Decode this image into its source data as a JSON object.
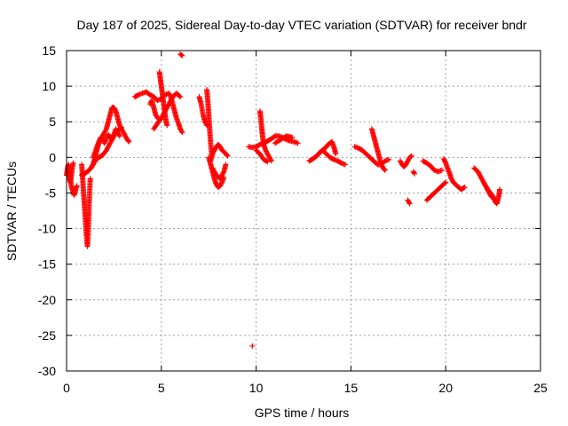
{
  "chart_data": {
    "type": "scatter",
    "title": "Day 187 of 2025, Sidereal Day-to-day VTEC variation (SDTVAR) for receiver bndr",
    "xlabel": "GPS time / hours",
    "ylabel": "SDTVAR / TECUs",
    "xlim": [
      0,
      25
    ],
    "ylim": [
      -30,
      15
    ],
    "x_ticks": [
      0,
      5,
      10,
      15,
      20,
      25
    ],
    "y_ticks": [
      -30,
      -25,
      -20,
      -15,
      -10,
      -5,
      0,
      5,
      10,
      15
    ],
    "x_tick_labels": [
      "0",
      "5",
      "10",
      "15",
      "20",
      "25"
    ],
    "y_tick_labels": [
      "-30",
      "-25",
      "-20",
      "-15",
      "-10",
      "-5",
      "0",
      "5",
      "10",
      "15"
    ],
    "grid": true,
    "marker": "+",
    "marker_color": "#ff0000",
    "series": [
      {
        "name": "SDTVAR",
        "tracks": [
          [
            [
              0.0,
              -2.5
            ],
            [
              0.05,
              -1.5
            ],
            [
              0.1,
              -1.0
            ],
            [
              0.15,
              -1.8
            ],
            [
              0.2,
              -3.0
            ],
            [
              0.25,
              -4.0
            ],
            [
              0.3,
              -4.5
            ],
            [
              0.35,
              -5.0
            ],
            [
              0.4,
              -5.3
            ],
            [
              0.45,
              -5.0
            ],
            [
              0.5,
              -4.3
            ],
            [
              0.55,
              -4.0
            ]
          ],
          [
            [
              0.1,
              -2.0
            ],
            [
              0.15,
              -3.0
            ],
            [
              0.2,
              -3.5
            ],
            [
              0.25,
              -2.5
            ],
            [
              0.3,
              -1.5
            ],
            [
              0.35,
              -0.8
            ]
          ],
          [
            [
              0.8,
              -1.0
            ],
            [
              0.85,
              -3.0
            ],
            [
              0.9,
              -5.0
            ],
            [
              0.95,
              -7.0
            ],
            [
              1.0,
              -9.0
            ],
            [
              1.05,
              -11.0
            ],
            [
              1.1,
              -12.5
            ],
            [
              1.15,
              -10.0
            ],
            [
              1.2,
              -6.0
            ],
            [
              1.25,
              -3.0
            ]
          ],
          [
            [
              0.8,
              -2.5
            ],
            [
              1.0,
              -2.2
            ],
            [
              1.2,
              -1.8
            ],
            [
              1.4,
              -1.0
            ],
            [
              1.5,
              0.0
            ],
            [
              1.6,
              1.0
            ],
            [
              1.7,
              2.0
            ],
            [
              1.8,
              2.5
            ],
            [
              1.9,
              3.0
            ],
            [
              2.0,
              3.5
            ],
            [
              2.1,
              4.0
            ],
            [
              2.2,
              5.0
            ],
            [
              2.3,
              6.0
            ],
            [
              2.4,
              7.0
            ],
            [
              2.5,
              7.0
            ],
            [
              2.6,
              6.5
            ],
            [
              2.7,
              5.5
            ],
            [
              2.8,
              4.5
            ],
            [
              2.9,
              4.0
            ],
            [
              3.0,
              3.5
            ],
            [
              3.1,
              3.0
            ],
            [
              3.2,
              2.5
            ],
            [
              3.3,
              2.2
            ]
          ],
          [
            [
              1.3,
              -1.5
            ],
            [
              1.5,
              -0.5
            ],
            [
              1.7,
              0.0
            ],
            [
              1.9,
              0.3
            ],
            [
              2.1,
              1.0
            ],
            [
              2.3,
              2.0
            ],
            [
              2.5,
              3.0
            ],
            [
              2.7,
              3.8
            ],
            [
              2.9,
              4.2
            ]
          ],
          [
            [
              1.4,
              0.0
            ],
            [
              1.6,
              1.5
            ],
            [
              1.8,
              2.8
            ],
            [
              2.0,
              2.0
            ],
            [
              2.2,
              3.2
            ],
            [
              2.4,
              2.5
            ],
            [
              2.6,
              4.0
            ],
            [
              2.8,
              3.0
            ]
          ],
          [
            [
              3.6,
              8.5
            ],
            [
              3.8,
              8.8
            ],
            [
              4.0,
              9.0
            ],
            [
              4.2,
              9.2
            ],
            [
              4.4,
              8.8
            ],
            [
              4.6,
              8.5
            ],
            [
              4.8,
              8.0
            ],
            [
              5.0,
              8.2
            ],
            [
              5.2,
              8.8
            ],
            [
              5.4,
              9.0
            ],
            [
              5.5,
              8.5
            ],
            [
              5.6,
              7.5
            ],
            [
              5.7,
              6.5
            ],
            [
              5.8,
              5.5
            ],
            [
              5.9,
              4.8
            ],
            [
              6.0,
              4.0
            ],
            [
              6.1,
              3.5
            ]
          ],
          [
            [
              4.6,
              4.0
            ],
            [
              4.8,
              4.8
            ],
            [
              5.0,
              5.5
            ],
            [
              5.2,
              6.5
            ],
            [
              5.4,
              7.5
            ],
            [
              5.6,
              8.5
            ],
            [
              5.8,
              9.0
            ],
            [
              6.0,
              8.5
            ]
          ],
          [
            [
              4.9,
              12.0
            ],
            [
              4.95,
              11.0
            ],
            [
              5.0,
              10.0
            ],
            [
              5.05,
              9.0
            ],
            [
              5.1,
              8.0
            ],
            [
              5.15,
              7.0
            ],
            [
              5.2,
              6.0
            ],
            [
              5.25,
              5.0
            ],
            [
              5.3,
              4.5
            ]
          ],
          [
            [
              4.4,
              7.5
            ],
            [
              4.5,
              8.0
            ],
            [
              4.6,
              7.0
            ],
            [
              4.7,
              6.0
            ],
            [
              4.8,
              5.5
            ]
          ],
          [
            [
              6.0,
              14.5
            ],
            [
              6.1,
              14.3
            ]
          ],
          [
            [
              7.0,
              8.5
            ],
            [
              7.1,
              7.5
            ],
            [
              7.2,
              6.0
            ],
            [
              7.3,
              5.0
            ],
            [
              7.4,
              4.5
            ]
          ],
          [
            [
              7.4,
              9.5
            ],
            [
              7.45,
              8.0
            ],
            [
              7.5,
              6.0
            ],
            [
              7.55,
              4.0
            ],
            [
              7.6,
              2.0
            ],
            [
              7.65,
              0.5
            ]
          ],
          [
            [
              7.5,
              0.0
            ],
            [
              7.6,
              -1.0
            ],
            [
              7.7,
              -2.0
            ],
            [
              7.8,
              -3.0
            ],
            [
              7.9,
              -3.8
            ],
            [
              8.0,
              -4.2
            ],
            [
              8.1,
              -4.0
            ],
            [
              8.2,
              -3.5
            ],
            [
              8.3,
              -2.8
            ]
          ],
          [
            [
              7.6,
              -0.5
            ],
            [
              7.7,
              0.5
            ],
            [
              7.8,
              1.0
            ],
            [
              7.9,
              1.5
            ],
            [
              8.0,
              1.8
            ],
            [
              8.1,
              1.5
            ],
            [
              8.2,
              1.0
            ],
            [
              8.3,
              0.8
            ],
            [
              8.4,
              0.5
            ],
            [
              8.5,
              0.2
            ]
          ],
          [
            [
              7.7,
              -1.5
            ],
            [
              7.9,
              -2.5
            ],
            [
              8.1,
              -3.0
            ],
            [
              8.3,
              -2.0
            ],
            [
              8.4,
              -1.0
            ]
          ],
          [
            [
              9.6,
              1.5
            ],
            [
              9.8,
              1.4
            ],
            [
              10.0,
              1.5
            ],
            [
              10.2,
              1.8
            ],
            [
              10.4,
              2.0
            ],
            [
              10.6,
              2.3
            ],
            [
              10.8,
              2.6
            ],
            [
              11.0,
              3.0
            ],
            [
              11.2,
              3.0
            ],
            [
              11.4,
              2.8
            ],
            [
              11.6,
              2.5
            ],
            [
              11.8,
              2.3
            ],
            [
              12.0,
              2.2
            ],
            [
              12.2,
              2.0
            ]
          ],
          [
            [
              10.2,
              6.5
            ],
            [
              10.25,
              5.5
            ],
            [
              10.3,
              4.0
            ],
            [
              10.35,
              2.8
            ],
            [
              10.4,
              1.8
            ],
            [
              10.5,
              1.0
            ],
            [
              10.6,
              0.5
            ],
            [
              10.7,
              0.0
            ],
            [
              10.8,
              -0.5
            ]
          ],
          [
            [
              10.0,
              1.0
            ],
            [
              10.2,
              0.5
            ],
            [
              10.4,
              -0.3
            ],
            [
              10.6,
              -0.6
            ]
          ],
          [
            [
              11.0,
              2.0
            ],
            [
              11.3,
              2.5
            ],
            [
              11.6,
              3.0
            ],
            [
              11.9,
              2.8
            ]
          ],
          [
            [
              9.8,
              -26.5
            ]
          ],
          [
            [
              12.8,
              -0.5
            ],
            [
              13.0,
              -0.2
            ],
            [
              13.2,
              0.2
            ],
            [
              13.4,
              0.8
            ],
            [
              13.6,
              1.2
            ],
            [
              13.8,
              1.8
            ],
            [
              14.0,
              2.2
            ],
            [
              14.1,
              1.5
            ],
            [
              14.2,
              0.5
            ]
          ],
          [
            [
              13.3,
              0.5
            ],
            [
              13.5,
              1.0
            ],
            [
              13.7,
              0.5
            ],
            [
              13.9,
              0.0
            ],
            [
              14.1,
              -0.3
            ],
            [
              14.3,
              -0.5
            ],
            [
              14.5,
              -0.8
            ],
            [
              14.7,
              -1.0
            ]
          ],
          [
            [
              15.2,
              1.5
            ],
            [
              15.4,
              1.3
            ],
            [
              15.6,
              1.0
            ],
            [
              15.8,
              0.5
            ],
            [
              16.0,
              0.0
            ],
            [
              16.2,
              -0.5
            ],
            [
              16.4,
              -1.0
            ],
            [
              16.6,
              -1.0
            ],
            [
              16.8,
              -0.5
            ],
            [
              17.0,
              -0.3
            ]
          ],
          [
            [
              16.1,
              4.0
            ],
            [
              16.2,
              3.0
            ],
            [
              16.3,
              2.0
            ],
            [
              16.4,
              1.0
            ],
            [
              16.5,
              0.0
            ],
            [
              16.6,
              -1.0
            ],
            [
              16.7,
              -1.5
            ],
            [
              16.8,
              -1.8
            ]
          ],
          [
            [
              17.6,
              -0.5
            ],
            [
              17.7,
              -1.0
            ],
            [
              17.8,
              -1.3
            ],
            [
              17.9,
              -1.0
            ],
            [
              18.0,
              -0.5
            ],
            [
              18.1,
              0.0
            ],
            [
              18.2,
              0.2
            ]
          ],
          [
            [
              18.3,
              -2.0
            ],
            [
              18.35,
              -2.3
            ]
          ],
          [
            [
              18.0,
              -6.0
            ],
            [
              18.1,
              -6.5
            ]
          ],
          [
            [
              18.8,
              -0.5
            ],
            [
              19.0,
              -0.8
            ],
            [
              19.2,
              -1.2
            ],
            [
              19.4,
              -1.8
            ],
            [
              19.6,
              -2.0
            ],
            [
              19.8,
              -1.8
            ]
          ],
          [
            [
              19.0,
              -6.0
            ],
            [
              19.2,
              -5.5
            ],
            [
              19.4,
              -5.0
            ],
            [
              19.6,
              -4.5
            ],
            [
              19.8,
              -4.0
            ],
            [
              20.0,
              -3.5
            ]
          ],
          [
            [
              19.9,
              -0.2
            ],
            [
              20.0,
              -0.8
            ],
            [
              20.1,
              -1.5
            ],
            [
              20.2,
              -2.2
            ],
            [
              20.3,
              -3.0
            ],
            [
              20.4,
              -3.5
            ],
            [
              20.6,
              -4.0
            ],
            [
              20.8,
              -4.5
            ],
            [
              21.0,
              -4.2
            ]
          ],
          [
            [
              21.5,
              -1.5
            ],
            [
              21.7,
              -2.0
            ],
            [
              21.9,
              -3.0
            ],
            [
              22.1,
              -4.0
            ],
            [
              22.3,
              -4.8
            ],
            [
              22.5,
              -5.5
            ],
            [
              22.6,
              -6.2
            ],
            [
              22.7,
              -6.5
            ],
            [
              22.8,
              -5.5
            ],
            [
              22.85,
              -4.5
            ]
          ],
          [
            [
              22.0,
              -3.5
            ],
            [
              22.2,
              -4.5
            ],
            [
              22.4,
              -5.5
            ],
            [
              22.6,
              -5.8
            ]
          ]
        ]
      }
    ]
  }
}
